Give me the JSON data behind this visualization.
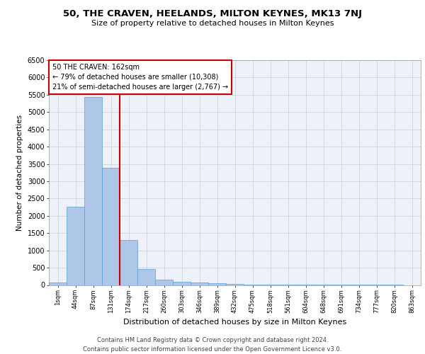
{
  "title_line1": "50, THE CRAVEN, HEELANDS, MILTON KEYNES, MK13 7NJ",
  "title_line2": "Size of property relative to detached houses in Milton Keynes",
  "xlabel": "Distribution of detached houses by size in Milton Keynes",
  "ylabel": "Number of detached properties",
  "footer_line1": "Contains HM Land Registry data © Crown copyright and database right 2024.",
  "footer_line2": "Contains public sector information licensed under the Open Government Licence v3.0.",
  "categories": [
    "1sqm",
    "44sqm",
    "87sqm",
    "131sqm",
    "174sqm",
    "217sqm",
    "260sqm",
    "303sqm",
    "346sqm",
    "389sqm",
    "432sqm",
    "475sqm",
    "518sqm",
    "561sqm",
    "604sqm",
    "648sqm",
    "691sqm",
    "734sqm",
    "777sqm",
    "820sqm",
    "863sqm"
  ],
  "values": [
    70,
    2270,
    5430,
    3380,
    1290,
    470,
    160,
    85,
    65,
    55,
    30,
    20,
    10,
    5,
    2,
    2,
    1,
    1,
    1,
    1,
    0
  ],
  "bar_color": "#aec6e8",
  "bar_edge_color": "#5a9fd4",
  "grid_color": "#d0d8e8",
  "background_color": "#eef2f8",
  "property_bin_index": 3,
  "vertical_line_color": "#cc0000",
  "annotation_text_line1": "50 THE CRAVEN: 162sqm",
  "annotation_text_line2": "← 79% of detached houses are smaller (10,308)",
  "annotation_text_line3": "21% of semi-detached houses are larger (2,767) →",
  "annotation_box_edge": "#cc0000",
  "ylim": [
    0,
    6500
  ],
  "yticks": [
    0,
    500,
    1000,
    1500,
    2000,
    2500,
    3000,
    3500,
    4000,
    4500,
    5000,
    5500,
    6000,
    6500
  ]
}
